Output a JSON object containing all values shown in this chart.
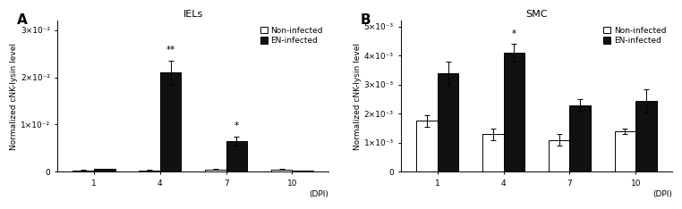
{
  "panel_A": {
    "title": "IELs",
    "label": "A",
    "dpi_labels": [
      "1",
      "4",
      "7",
      "10"
    ],
    "non_infected": [
      0.0003,
      0.0003,
      0.0005,
      0.0005
    ],
    "non_infected_err": [
      8e-05,
      8e-05,
      0.0001,
      8e-05
    ],
    "en_infected": [
      0.0006,
      0.021,
      0.0065,
      0.0002
    ],
    "en_infected_err": [
      0.0001,
      0.0025,
      0.001,
      5e-05
    ],
    "significance": [
      "",
      "**",
      "*",
      ""
    ],
    "ylim": [
      0,
      0.032
    ],
    "yticks": [
      0,
      0.01,
      0.02,
      0.03
    ],
    "ytick_labels": [
      "0",
      "1×10⁻²",
      "2×10⁻²",
      "3×10⁻²"
    ],
    "ylabel": "Normalized cNK-lysin level"
  },
  "panel_B": {
    "title": "SMC",
    "label": "B",
    "dpi_labels": [
      "1",
      "4",
      "7",
      "10"
    ],
    "non_infected": [
      0.00175,
      0.0013,
      0.0011,
      0.0014
    ],
    "non_infected_err": [
      0.0002,
      0.0002,
      0.0002,
      0.0001
    ],
    "en_infected": [
      0.0034,
      0.0041,
      0.0023,
      0.00245
    ],
    "en_infected_err": [
      0.0004,
      0.0003,
      0.0002,
      0.0004
    ],
    "significance": [
      "",
      "*",
      "",
      ""
    ],
    "ylim": [
      0,
      0.0052
    ],
    "yticks": [
      0,
      0.001,
      0.002,
      0.003,
      0.004,
      0.005
    ],
    "ytick_labels": [
      "0",
      "1×10⁻³",
      "2×10⁻³",
      "3×10⁻³",
      "4×10⁻³",
      "5×10⁻³"
    ],
    "ylabel": "Normalized cNK-lysin level"
  },
  "bar_width": 0.32,
  "colors": {
    "non_infected": "#ffffff",
    "en_infected": "#111111",
    "edge": "#000000"
  },
  "legend": {
    "non_infected": "Non-infected",
    "en_infected": "EN-infected"
  },
  "xlabel": "(DPI)",
  "fontsize_title": 8,
  "fontsize_axis": 6.5,
  "fontsize_tick": 6.5,
  "fontsize_legend": 6.5,
  "fontsize_sig": 7.5,
  "fontsize_panel_label": 11
}
